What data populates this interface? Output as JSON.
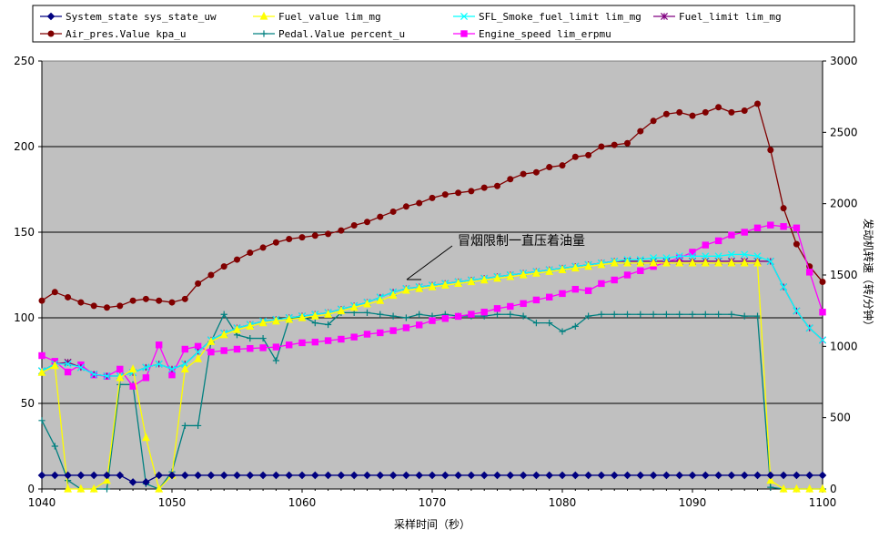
{
  "chart_data": {
    "type": "line",
    "x_label": "采样时间（秒）",
    "y2_label": "发动机转速（转/分钟）",
    "annotation": "冒烟限制一直压着油量",
    "x_range": [
      1040,
      1100
    ],
    "x_ticks": [
      "1040",
      "1050",
      "1060",
      "1070",
      "1080",
      "1090",
      "1100"
    ],
    "y_range": [
      0,
      250
    ],
    "y_ticks": [
      "0",
      "50",
      "100",
      "150",
      "200",
      "250"
    ],
    "y2_range": [
      0,
      3000
    ],
    "y2_ticks": [
      "0",
      "500",
      "1000",
      "1500",
      "2000",
      "2500",
      "3000"
    ],
    "grid": "horizontal",
    "legend_placement": "top",
    "x": [
      1040,
      1041,
      1042,
      1043,
      1044,
      1045,
      1046,
      1047,
      1048,
      1049,
      1050,
      1051,
      1052,
      1053,
      1054,
      1055,
      1056,
      1057,
      1058,
      1059,
      1060,
      1061,
      1062,
      1063,
      1064,
      1065,
      1066,
      1067,
      1068,
      1069,
      1070,
      1071,
      1072,
      1073,
      1074,
      1075,
      1076,
      1077,
      1078,
      1079,
      1080,
      1081,
      1082,
      1083,
      1084,
      1085,
      1086,
      1087,
      1088,
      1089,
      1090,
      1091,
      1092,
      1093,
      1094,
      1095,
      1096,
      1097,
      1098,
      1099,
      1100
    ],
    "series": [
      {
        "name": "System_state sys_state_uw",
        "color": "#000080",
        "marker": "diamond",
        "axis": "left",
        "values": [
          8,
          8,
          8,
          8,
          8,
          8,
          8,
          4,
          4,
          8,
          8,
          8,
          8,
          8,
          8,
          8,
          8,
          8,
          8,
          8,
          8,
          8,
          8,
          8,
          8,
          8,
          8,
          8,
          8,
          8,
          8,
          8,
          8,
          8,
          8,
          8,
          8,
          8,
          8,
          8,
          8,
          8,
          8,
          8,
          8,
          8,
          8,
          8,
          8,
          8,
          8,
          8,
          8,
          8,
          8,
          8,
          8,
          8,
          8,
          8,
          8
        ]
      },
      {
        "name": "Fuel_value lim_mg",
        "color": "#ffff00",
        "marker": "triangle",
        "axis": "left",
        "values": [
          68,
          72,
          0,
          0,
          0,
          5,
          65,
          70,
          30,
          0,
          8,
          70,
          76,
          86,
          90,
          93,
          95,
          97,
          98,
          99,
          100,
          101,
          102,
          104,
          106,
          108,
          110,
          113,
          116,
          117,
          118,
          119,
          120,
          121,
          122,
          123,
          124,
          125,
          126,
          127,
          128,
          129,
          130,
          131,
          132,
          132,
          132,
          132,
          132,
          132,
          132,
          132,
          132,
          132,
          132,
          132,
          5,
          0,
          0,
          0,
          0
        ]
      },
      {
        "name": "SFL_Smoke_fuel_limit lim_mg",
        "color": "#00ffff",
        "marker": "x",
        "axis": "left",
        "values": [
          69,
          73,
          73,
          71,
          67,
          66,
          66,
          68,
          71,
          73,
          70,
          73,
          80,
          87,
          91,
          94,
          96,
          98,
          99,
          100,
          101,
          102,
          103,
          105,
          107,
          109,
          112,
          115,
          117,
          118,
          119,
          120,
          121,
          122,
          123,
          124,
          125,
          126,
          127,
          128,
          129,
          130,
          131,
          132,
          133,
          134,
          134,
          135,
          135,
          136,
          136,
          136,
          136,
          137,
          137,
          136,
          133,
          118,
          104,
          94,
          87
        ]
      },
      {
        "name": "Fuel_limit lim_mg",
        "color": "#800080",
        "marker": "star",
        "axis": "left",
        "values": [
          69,
          73,
          74,
          71,
          67,
          66,
          66,
          68,
          71,
          73,
          70,
          73,
          80,
          87,
          91,
          94,
          96,
          98,
          99,
          100,
          101,
          102,
          103,
          105,
          107,
          109,
          112,
          115,
          117,
          118,
          119,
          120,
          121,
          122,
          123,
          124,
          125,
          126,
          127,
          128,
          129,
          130,
          131,
          132,
          133,
          133,
          133,
          133,
          133,
          133,
          133,
          133,
          133,
          133,
          133,
          133,
          133,
          118,
          104,
          94,
          87
        ]
      },
      {
        "name": "Air_pres.Value kpa_u",
        "color": "#800000",
        "marker": "circle",
        "axis": "left",
        "values": [
          110,
          115,
          112,
          109,
          107,
          106,
          107,
          110,
          111,
          110,
          109,
          111,
          120,
          125,
          130,
          134,
          138,
          141,
          144,
          146,
          147,
          148,
          149,
          151,
          154,
          156,
          159,
          162,
          165,
          167,
          170,
          172,
          173,
          174,
          176,
          177,
          181,
          184,
          185,
          188,
          189,
          194,
          195,
          200,
          201,
          202,
          209,
          215,
          219,
          220,
          218,
          220,
          223,
          220,
          221,
          225,
          198,
          164,
          143,
          130,
          121
        ]
      },
      {
        "name": "Pedal.Value percent_u",
        "color": "#008080",
        "marker": "plus",
        "axis": "left",
        "values": [
          40,
          25,
          5,
          0,
          0,
          0,
          61,
          61,
          3,
          0,
          10,
          37,
          37,
          86,
          102,
          90,
          88,
          88,
          75,
          99,
          101,
          97,
          96,
          103,
          103,
          103,
          102,
          101,
          100,
          102,
          101,
          102,
          101,
          101,
          101,
          102,
          102,
          101,
          97,
          97,
          92,
          95,
          101,
          102,
          102,
          102,
          102,
          102,
          102,
          102,
          102,
          102,
          102,
          102,
          101,
          101,
          1,
          0,
          0,
          0,
          0
        ]
      },
      {
        "name": "Engine_speed lim_erpmu",
        "color": "#ff00ff",
        "marker": "square",
        "axis": "right",
        "values": [
          935,
          895,
          820,
          870,
          800,
          790,
          840,
          720,
          780,
          1010,
          800,
          980,
          1000,
          960,
          970,
          980,
          985,
          990,
          995,
          1010,
          1025,
          1030,
          1040,
          1050,
          1065,
          1085,
          1095,
          1110,
          1130,
          1150,
          1180,
          1195,
          1210,
          1225,
          1240,
          1265,
          1280,
          1300,
          1325,
          1345,
          1370,
          1400,
          1390,
          1440,
          1465,
          1500,
          1530,
          1560,
          1590,
          1620,
          1660,
          1710,
          1740,
          1780,
          1800,
          1830,
          1850,
          1840,
          1830,
          1520,
          1240
        ]
      }
    ]
  }
}
